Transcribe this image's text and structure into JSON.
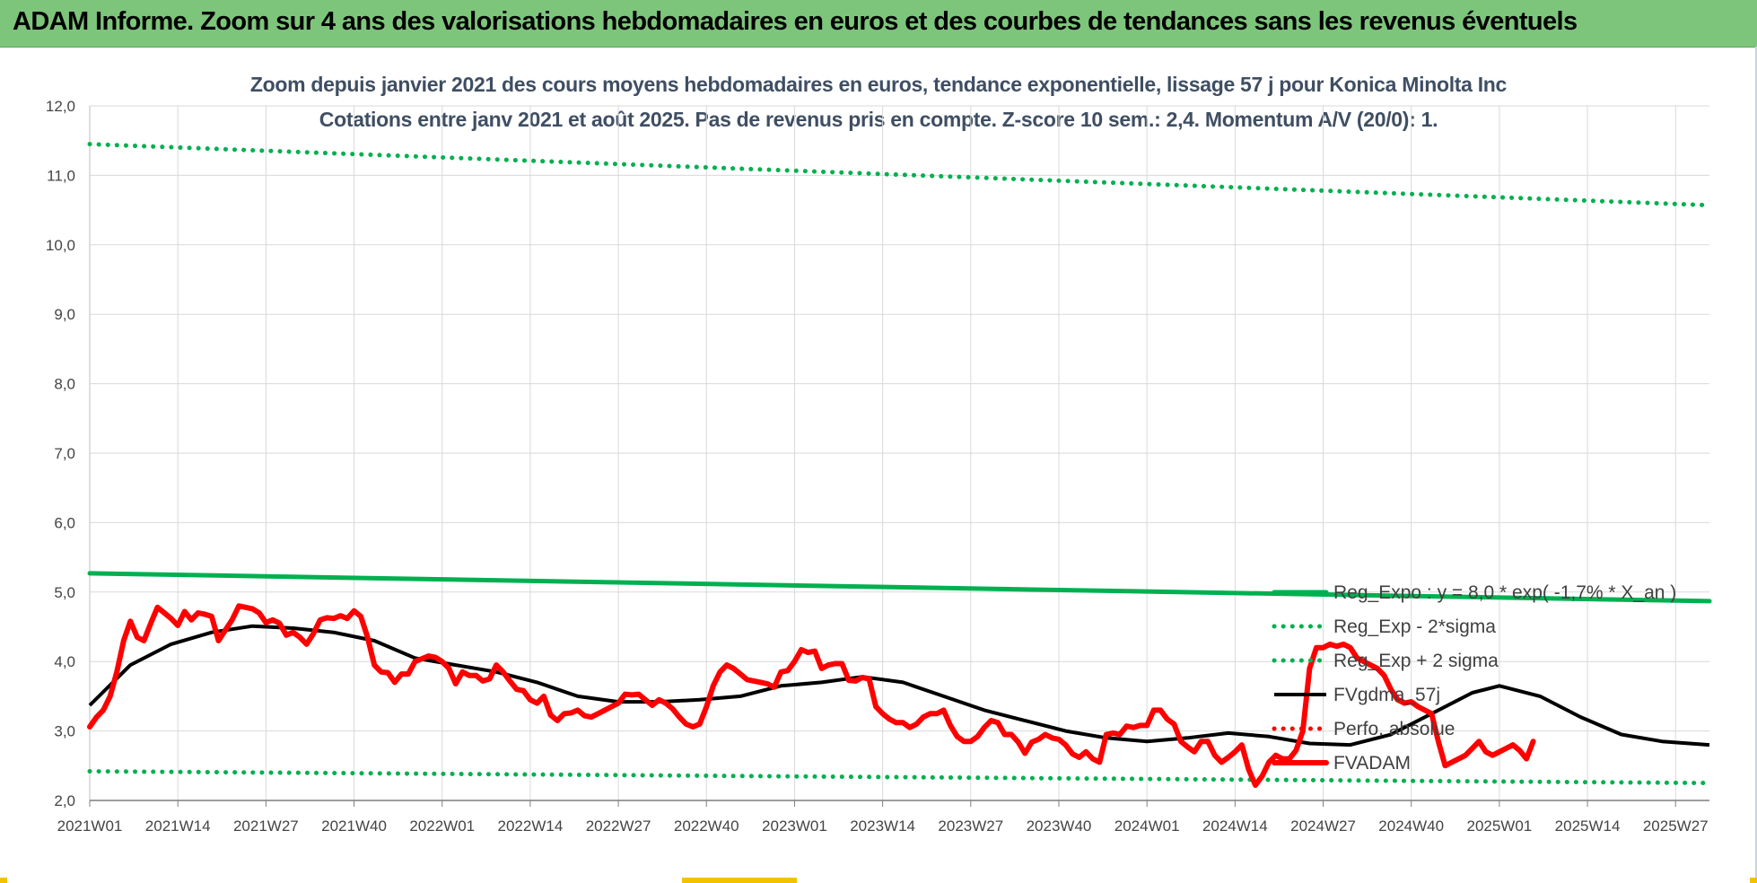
{
  "banner": {
    "title": "ADAM Informe. Zoom sur 4 ans des valorisations hebdomadaires en euros et des courbes de tendances sans les revenus éventuels",
    "color": "#7dc57b"
  },
  "chart_data": {
    "type": "line",
    "title": "Zoom depuis janvier 2021 des cours moyens hebdomadaires en euros, tendance exponentielle, lissage 57 j pour Konica Minolta Inc",
    "subtitle": "Cotations entre janv 2021 et août 2025.  Pas de revenus pris en compte. Z-score 10 sem.: 2,4. Momentum A/V (20/0): 1.",
    "xlabel": "",
    "ylabel": "",
    "ylim": [
      2.0,
      12.0
    ],
    "grid": true,
    "legend_position": "right, lower half, over the plot",
    "y_ticks": [
      "2,0",
      "3,0",
      "4,0",
      "5,0",
      "6,0",
      "7,0",
      "8,0",
      "9,0",
      "10,0",
      "11,0",
      "12,0"
    ],
    "x_ticks": [
      {
        "week": 1,
        "label": "2021W01"
      },
      {
        "week": 14,
        "label": "2021W14"
      },
      {
        "week": 27,
        "label": "2021W27"
      },
      {
        "week": 40,
        "label": "2021W40"
      },
      {
        "week": 53,
        "label": "2022W01"
      },
      {
        "week": 66,
        "label": "2022W14"
      },
      {
        "week": 79,
        "label": "2022W27"
      },
      {
        "week": 92,
        "label": "2022W40"
      },
      {
        "week": 105,
        "label": "2023W01"
      },
      {
        "week": 118,
        "label": "2023W14"
      },
      {
        "week": 131,
        "label": "2023W27"
      },
      {
        "week": 144,
        "label": "2023W40"
      },
      {
        "week": 157,
        "label": "2024W01"
      },
      {
        "week": 170,
        "label": "2024W14"
      },
      {
        "week": 183,
        "label": "2024W27"
      },
      {
        "week": 196,
        "label": "2024W40"
      },
      {
        "week": 209,
        "label": "2025W01"
      },
      {
        "week": 222,
        "label": "2025W14"
      },
      {
        "week": 235,
        "label": "2025W27"
      }
    ],
    "x_range_weeks": [
      1,
      240
    ],
    "series": [
      {
        "name": "Reg_Expo : y = 8,0 * exp( -1,7% * X_an )",
        "style": "solid-thick",
        "color": "#00b050",
        "points": [
          [
            1,
            5.27
          ],
          [
            240,
            4.87
          ]
        ]
      },
      {
        "name": "Reg_Exp - 2*sigma",
        "style": "dotted",
        "color": "#00b050",
        "points": [
          [
            1,
            2.42
          ],
          [
            240,
            2.25
          ]
        ]
      },
      {
        "name": "Reg_Exp + 2 sigma",
        "style": "dotted",
        "color": "#00b050",
        "points": [
          [
            1,
            11.45
          ],
          [
            240,
            10.57
          ]
        ]
      },
      {
        "name": "FVgdma_57j",
        "style": "solid",
        "color": "#000000",
        "points": [
          [
            1,
            3.37
          ],
          [
            7,
            3.95
          ],
          [
            13,
            4.25
          ],
          [
            19,
            4.42
          ],
          [
            25,
            4.51
          ],
          [
            31,
            4.48
          ],
          [
            37,
            4.42
          ],
          [
            43,
            4.3
          ],
          [
            49,
            4.05
          ],
          [
            55,
            3.95
          ],
          [
            61,
            3.85
          ],
          [
            67,
            3.7
          ],
          [
            73,
            3.5
          ],
          [
            79,
            3.42
          ],
          [
            85,
            3.42
          ],
          [
            91,
            3.45
          ],
          [
            97,
            3.5
          ],
          [
            103,
            3.65
          ],
          [
            109,
            3.7
          ],
          [
            115,
            3.78
          ],
          [
            121,
            3.7
          ],
          [
            127,
            3.5
          ],
          [
            133,
            3.3
          ],
          [
            139,
            3.15
          ],
          [
            145,
            3.0
          ],
          [
            151,
            2.9
          ],
          [
            157,
            2.85
          ],
          [
            163,
            2.9
          ],
          [
            169,
            2.97
          ],
          [
            175,
            2.92
          ],
          [
            181,
            2.82
          ],
          [
            187,
            2.8
          ],
          [
            193,
            2.95
          ],
          [
            199,
            3.25
          ],
          [
            205,
            3.55
          ],
          [
            209,
            3.65
          ],
          [
            215,
            3.5
          ],
          [
            221,
            3.2
          ],
          [
            227,
            2.95
          ],
          [
            233,
            2.85
          ],
          [
            240,
            2.8
          ]
        ]
      },
      {
        "name": "Perfo. absolue",
        "style": "dotted",
        "color": "#ff0000",
        "points": []
      },
      {
        "name": "FVADAM",
        "style": "solid-thick",
        "color": "#ff0000",
        "points": [
          [
            1,
            3.06
          ],
          [
            2,
            3.2
          ],
          [
            3,
            3.3
          ],
          [
            4,
            3.5
          ],
          [
            5,
            3.85
          ],
          [
            6,
            4.3
          ],
          [
            7,
            4.58
          ],
          [
            8,
            4.35
          ],
          [
            9,
            4.3
          ],
          [
            10,
            4.55
          ],
          [
            11,
            4.78
          ],
          [
            12,
            4.7
          ],
          [
            13,
            4.62
          ],
          [
            14,
            4.52
          ],
          [
            15,
            4.72
          ],
          [
            16,
            4.6
          ],
          [
            17,
            4.7
          ],
          [
            18,
            4.68
          ],
          [
            19,
            4.65
          ],
          [
            20,
            4.3
          ],
          [
            21,
            4.45
          ],
          [
            22,
            4.6
          ],
          [
            23,
            4.8
          ],
          [
            24,
            4.78
          ],
          [
            25,
            4.76
          ],
          [
            26,
            4.7
          ],
          [
            27,
            4.56
          ],
          [
            28,
            4.6
          ],
          [
            29,
            4.55
          ],
          [
            30,
            4.38
          ],
          [
            31,
            4.42
          ],
          [
            32,
            4.35
          ],
          [
            33,
            4.25
          ],
          [
            34,
            4.4
          ],
          [
            35,
            4.6
          ],
          [
            36,
            4.63
          ],
          [
            37,
            4.62
          ],
          [
            38,
            4.66
          ],
          [
            39,
            4.62
          ],
          [
            40,
            4.73
          ],
          [
            41,
            4.65
          ],
          [
            42,
            4.35
          ],
          [
            43,
            3.95
          ],
          [
            44,
            3.85
          ],
          [
            45,
            3.84
          ],
          [
            46,
            3.7
          ],
          [
            47,
            3.82
          ],
          [
            48,
            3.82
          ],
          [
            49,
            4.0
          ],
          [
            50,
            4.04
          ],
          [
            51,
            4.08
          ],
          [
            52,
            4.06
          ],
          [
            53,
            4.0
          ],
          [
            54,
            3.9
          ],
          [
            55,
            3.68
          ],
          [
            56,
            3.85
          ],
          [
            57,
            3.8
          ],
          [
            58,
            3.8
          ],
          [
            59,
            3.72
          ],
          [
            60,
            3.75
          ],
          [
            61,
            3.95
          ],
          [
            62,
            3.85
          ],
          [
            63,
            3.72
          ],
          [
            64,
            3.6
          ],
          [
            65,
            3.58
          ],
          [
            66,
            3.45
          ],
          [
            67,
            3.4
          ],
          [
            68,
            3.5
          ],
          [
            69,
            3.23
          ],
          [
            70,
            3.15
          ],
          [
            71,
            3.25
          ],
          [
            72,
            3.26
          ],
          [
            73,
            3.3
          ],
          [
            74,
            3.22
          ],
          [
            75,
            3.2
          ],
          [
            76,
            3.25
          ],
          [
            77,
            3.3
          ],
          [
            78,
            3.35
          ],
          [
            79,
            3.4
          ],
          [
            80,
            3.53
          ],
          [
            81,
            3.52
          ],
          [
            82,
            3.53
          ],
          [
            83,
            3.45
          ],
          [
            84,
            3.37
          ],
          [
            85,
            3.45
          ],
          [
            86,
            3.4
          ],
          [
            87,
            3.32
          ],
          [
            88,
            3.2
          ],
          [
            89,
            3.1
          ],
          [
            90,
            3.06
          ],
          [
            91,
            3.1
          ],
          [
            92,
            3.35
          ],
          [
            93,
            3.65
          ],
          [
            94,
            3.85
          ],
          [
            95,
            3.95
          ],
          [
            96,
            3.9
          ],
          [
            97,
            3.82
          ],
          [
            98,
            3.74
          ],
          [
            99,
            3.72
          ],
          [
            100,
            3.7
          ],
          [
            101,
            3.68
          ],
          [
            102,
            3.63
          ],
          [
            103,
            3.85
          ],
          [
            104,
            3.87
          ],
          [
            105,
            4.0
          ],
          [
            106,
            4.17
          ],
          [
            107,
            4.13
          ],
          [
            108,
            4.15
          ],
          [
            109,
            3.9
          ],
          [
            110,
            3.95
          ],
          [
            111,
            3.97
          ],
          [
            112,
            3.97
          ],
          [
            113,
            3.73
          ],
          [
            114,
            3.72
          ],
          [
            115,
            3.77
          ],
          [
            116,
            3.75
          ],
          [
            117,
            3.35
          ],
          [
            118,
            3.25
          ],
          [
            119,
            3.17
          ],
          [
            120,
            3.12
          ],
          [
            121,
            3.12
          ],
          [
            122,
            3.05
          ],
          [
            123,
            3.1
          ],
          [
            124,
            3.2
          ],
          [
            125,
            3.25
          ],
          [
            126,
            3.25
          ],
          [
            127,
            3.3
          ],
          [
            128,
            3.08
          ],
          [
            129,
            2.92
          ],
          [
            130,
            2.85
          ],
          [
            131,
            2.85
          ],
          [
            132,
            2.92
          ],
          [
            133,
            3.05
          ],
          [
            134,
            3.15
          ],
          [
            135,
            3.12
          ],
          [
            136,
            2.95
          ],
          [
            137,
            2.95
          ],
          [
            138,
            2.84
          ],
          [
            139,
            2.68
          ],
          [
            140,
            2.84
          ],
          [
            141,
            2.88
          ],
          [
            142,
            2.95
          ],
          [
            143,
            2.9
          ],
          [
            144,
            2.88
          ],
          [
            145,
            2.8
          ],
          [
            146,
            2.67
          ],
          [
            147,
            2.62
          ],
          [
            148,
            2.7
          ],
          [
            149,
            2.6
          ],
          [
            150,
            2.55
          ],
          [
            151,
            2.95
          ],
          [
            152,
            2.97
          ],
          [
            153,
            2.95
          ],
          [
            154,
            3.07
          ],
          [
            155,
            3.05
          ],
          [
            156,
            3.08
          ],
          [
            157,
            3.08
          ],
          [
            158,
            3.3
          ],
          [
            159,
            3.3
          ],
          [
            160,
            3.17
          ],
          [
            161,
            3.1
          ],
          [
            162,
            2.85
          ],
          [
            163,
            2.77
          ],
          [
            164,
            2.7
          ],
          [
            165,
            2.85
          ],
          [
            166,
            2.85
          ],
          [
            167,
            2.65
          ],
          [
            168,
            2.55
          ],
          [
            169,
            2.62
          ],
          [
            170,
            2.7
          ],
          [
            171,
            2.8
          ],
          [
            172,
            2.45
          ],
          [
            173,
            2.22
          ],
          [
            174,
            2.35
          ],
          [
            175,
            2.55
          ],
          [
            176,
            2.65
          ],
          [
            177,
            2.6
          ],
          [
            178,
            2.6
          ],
          [
            179,
            2.72
          ],
          [
            180,
            3.0
          ],
          [
            181,
            3.9
          ],
          [
            182,
            4.2
          ],
          [
            183,
            4.2
          ],
          [
            184,
            4.25
          ],
          [
            185,
            4.22
          ],
          [
            186,
            4.25
          ],
          [
            187,
            4.2
          ],
          [
            188,
            4.05
          ],
          [
            189,
            4.0
          ],
          [
            190,
            3.95
          ],
          [
            191,
            3.9
          ],
          [
            192,
            3.8
          ],
          [
            193,
            3.6
          ],
          [
            194,
            3.45
          ],
          [
            195,
            3.4
          ],
          [
            196,
            3.42
          ],
          [
            197,
            3.35
          ],
          [
            198,
            3.3
          ],
          [
            199,
            3.25
          ],
          [
            200,
            2.85
          ],
          [
            201,
            2.5
          ],
          [
            202,
            2.55
          ],
          [
            203,
            2.6
          ],
          [
            204,
            2.65
          ],
          [
            205,
            2.75
          ],
          [
            206,
            2.85
          ],
          [
            207,
            2.7
          ],
          [
            208,
            2.65
          ],
          [
            209,
            2.7
          ],
          [
            210,
            2.75
          ],
          [
            211,
            2.8
          ],
          [
            212,
            2.72
          ],
          [
            213,
            2.6
          ],
          [
            214,
            2.85
          ]
        ]
      }
    ]
  }
}
